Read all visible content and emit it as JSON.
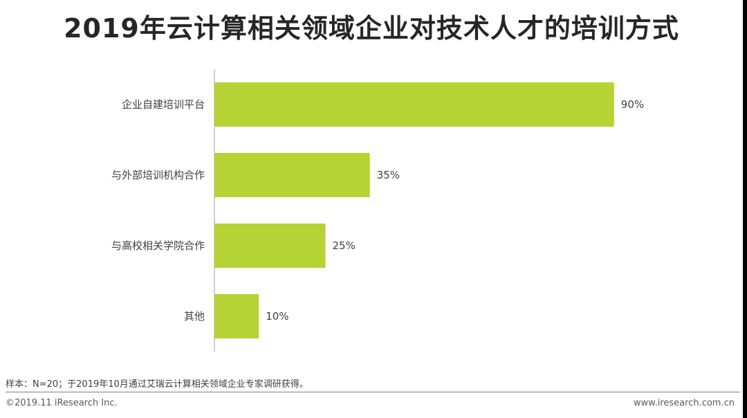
{
  "title": "2019年云计算相关领域企业对技术人才的培训方式",
  "chart_data": {
    "type": "bar",
    "orientation": "horizontal",
    "categories": [
      "企业自建培训平台",
      "与外部培训机构合作",
      "与高校相关学院合作",
      "其他"
    ],
    "values": [
      90,
      35,
      25,
      10
    ],
    "value_labels": [
      "90%",
      "35%",
      "25%",
      "10%"
    ],
    "xlim": [
      0,
      100
    ],
    "color": "#b5d334",
    "axis_color": "#bfbfbf"
  },
  "footer": {
    "note": "样本：N=20；于2019年10月通过艾瑞云计算相关领域企业专家调研获得。",
    "copyright": "©2019.11 iResearch Inc.",
    "website": "www.iresearch.com.cn"
  }
}
